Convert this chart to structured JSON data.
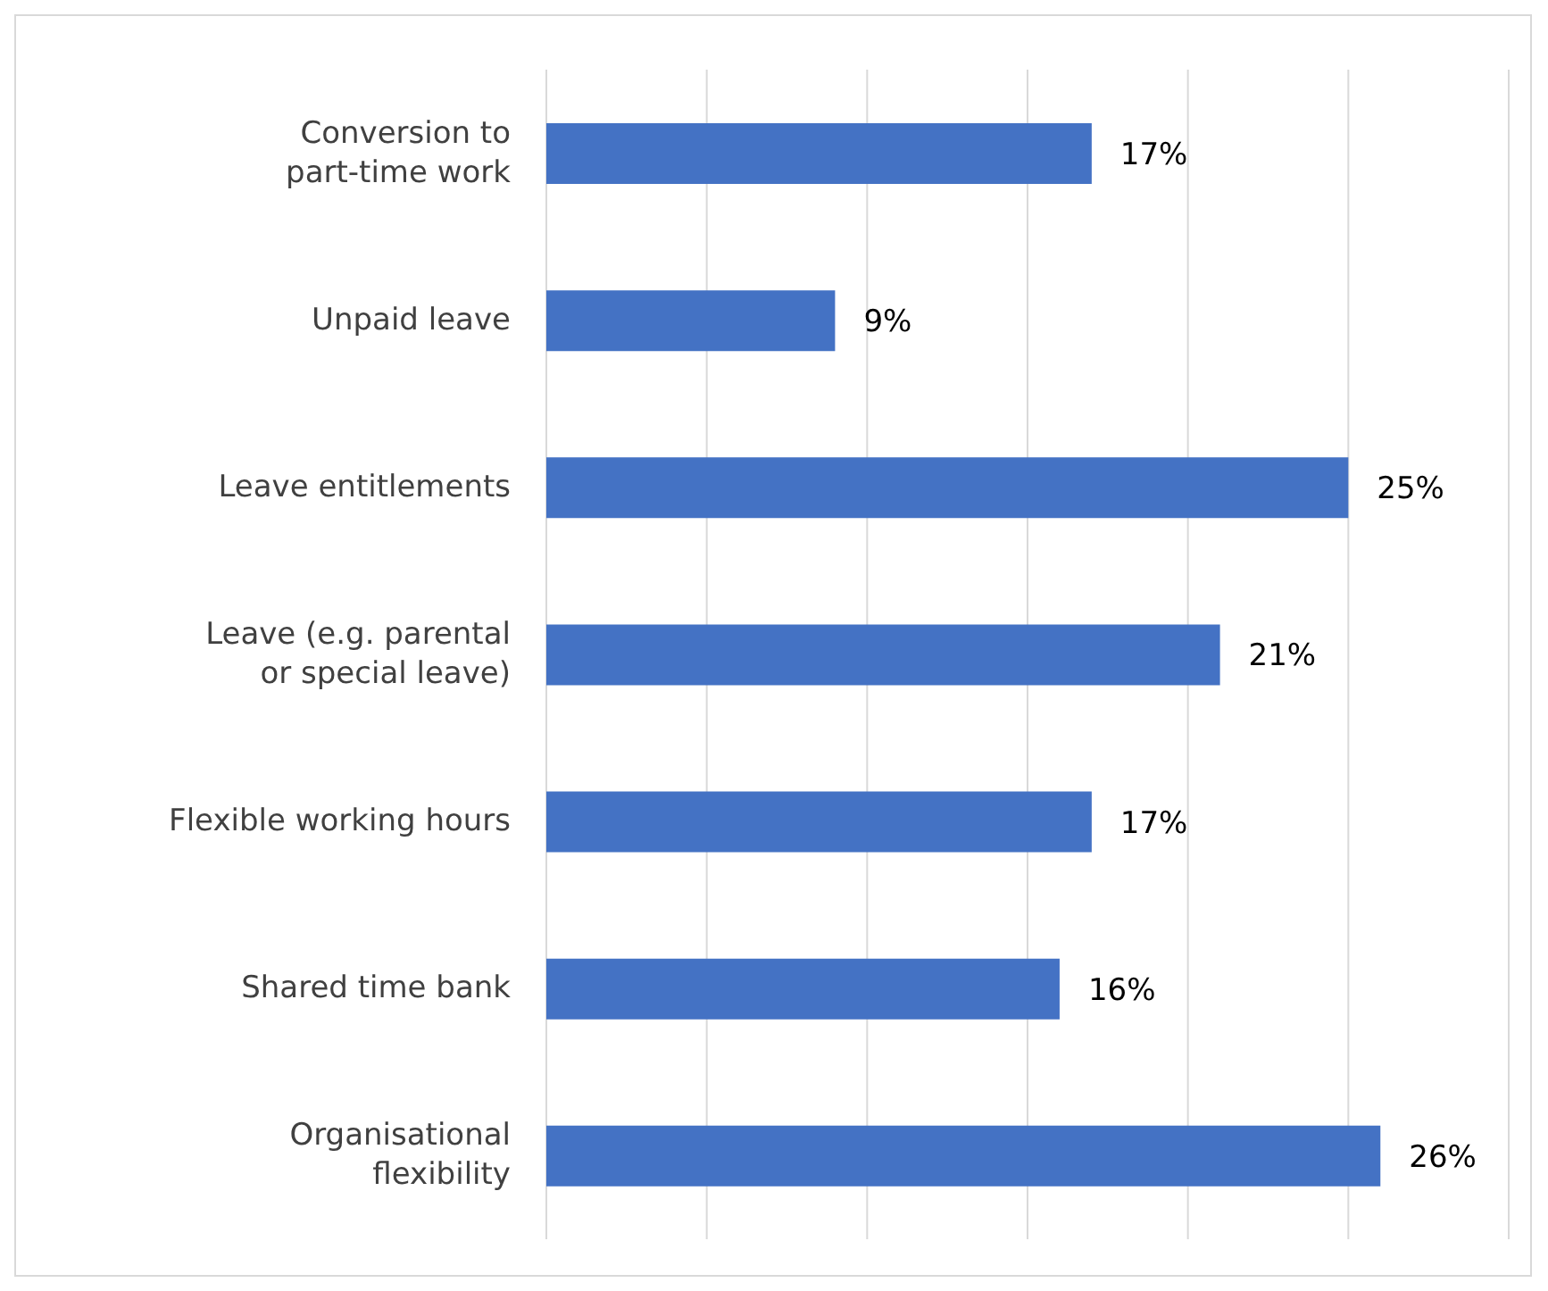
{
  "chart_data": {
    "type": "bar",
    "orientation": "horizontal",
    "categories": [
      "Conversion to part-time work",
      "Unpaid leave",
      "Leave entitlements",
      "Leave (e.g. parental or special leave)",
      "Flexible working hours",
      "Shared time bank",
      "Organisational flexibility"
    ],
    "values": [
      17,
      9,
      25,
      21,
      17,
      16,
      26
    ],
    "value_labels": [
      "17%",
      "9%",
      "25%",
      "21%",
      "17%",
      "16%",
      "26%"
    ],
    "color": "#4472c4",
    "xlim": [
      0,
      30
    ],
    "xticks": [
      {
        "value": 0,
        "label": null
      },
      {
        "value": 5,
        "label": null
      },
      {
        "value": 10,
        "label": null
      },
      {
        "value": 15,
        "label": null
      },
      {
        "value": 20,
        "label": null
      },
      {
        "value": 25,
        "label": null
      },
      {
        "value": 30,
        "label": null
      }
    ],
    "grid": "x",
    "tick_labels": "y",
    "legend": false
  }
}
